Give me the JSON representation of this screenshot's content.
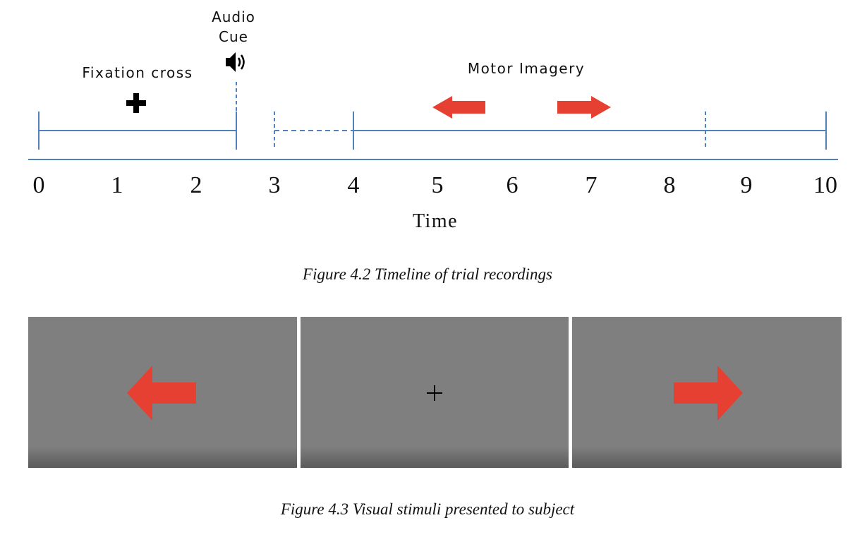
{
  "figure1": {
    "labels": {
      "audio_cue_line1": "Audio",
      "audio_cue_line2": "Cue",
      "fixation_cross": "Fixation cross",
      "motor_imagery": "Motor Imagery"
    },
    "axis": {
      "title": "Time",
      "ticks": [
        "0",
        "1",
        "2",
        "3",
        "4",
        "5",
        "6",
        "7",
        "8",
        "9",
        "10"
      ]
    },
    "caption": "Figure 4.2 Timeline of trial recordings"
  },
  "figure2": {
    "panels": [
      {
        "name": "left-arrow-stimulus",
        "icon": "left-arrow-icon"
      },
      {
        "name": "fixation-cross-stimulus",
        "icon": "plus-icon"
      },
      {
        "name": "right-arrow-stimulus",
        "icon": "right-arrow-icon"
      }
    ],
    "caption": "Figure 4.3 Visual stimuli presented to subject"
  },
  "colors": {
    "timeline_blue": "#4f81bd",
    "arrow_red": "#e64032",
    "panel_gray": "#7f7f7f"
  }
}
